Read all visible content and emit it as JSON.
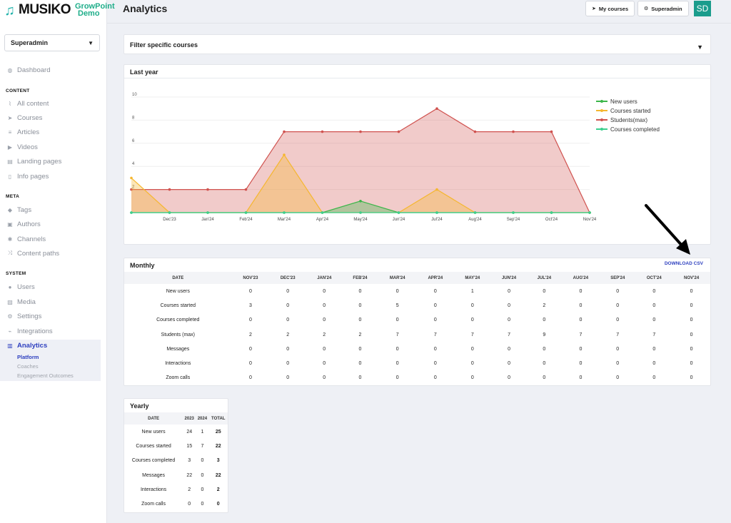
{
  "brand": {
    "name": "MUSIKO",
    "sub_line1": "GrowPoint",
    "sub_line2": "Demo"
  },
  "role_select": "Superadmin",
  "sidebar": {
    "dashboard": "Dashboard",
    "content_section": "CONTENT",
    "content": [
      "All content",
      "Courses",
      "Articles",
      "Videos",
      "Landing pages",
      "Info pages"
    ],
    "meta_section": "META",
    "meta": [
      "Tags",
      "Authors",
      "Channels",
      "Content paths"
    ],
    "system_section": "SYSTEM",
    "system": [
      "Users",
      "Media",
      "Settings",
      "Integrations",
      "Analytics"
    ],
    "analytics_sub": [
      "Platform",
      "Coaches",
      "Engagement Outcomes"
    ]
  },
  "header": {
    "title": "Analytics",
    "my_courses": "My courses",
    "superadmin": "Superadmin",
    "avatar": "SD"
  },
  "filter": {
    "label": "Filter specific courses"
  },
  "last_year": {
    "title": "Last year"
  },
  "chart_data": {
    "type": "area",
    "x": [
      "Nov'23",
      "Dec'23",
      "Jan'24",
      "Feb'24",
      "Mar'24",
      "Apr'24",
      "May'24",
      "Jun'24",
      "Jul'24",
      "Aug'24",
      "Sep'24",
      "Oct'24",
      "Nov'24"
    ],
    "x_tick_labels": [
      "Dec'23",
      "Jan'24",
      "Feb'24",
      "Mar'24",
      "Apr'24",
      "May'24",
      "Jun'24",
      "Jul'24",
      "Aug'24",
      "Sep'24",
      "Oct'24",
      "Nov'24"
    ],
    "y_ticks": [
      2,
      4,
      6,
      8,
      10
    ],
    "ylim": [
      0,
      10
    ],
    "legend_position": "right",
    "series": [
      {
        "name": "New users",
        "color": "#3cb64a",
        "values": [
          0,
          0,
          0,
          0,
          0,
          0,
          1,
          0,
          0,
          0,
          0,
          0,
          0
        ]
      },
      {
        "name": "Courses started",
        "color": "#f5b730",
        "values": [
          3,
          0,
          0,
          0,
          5,
          0,
          0,
          0,
          2,
          0,
          0,
          0,
          0
        ]
      },
      {
        "name": "Students(max)",
        "color": "#d0524f",
        "values": [
          2,
          2,
          2,
          2,
          7,
          7,
          7,
          7,
          9,
          7,
          7,
          7,
          0
        ]
      },
      {
        "name": "Courses completed",
        "color": "#3ccf8e",
        "values": [
          0,
          0,
          0,
          0,
          0,
          0,
          0,
          0,
          0,
          0,
          0,
          0,
          0
        ]
      }
    ]
  },
  "monthly": {
    "title": "Monthly",
    "download": "DOWNLOAD CSV",
    "headers": [
      "DATE",
      "NOV'23",
      "DEC'23",
      "JAN'24",
      "FEB'24",
      "MAR'24",
      "APR'24",
      "MAY'24",
      "JUN'24",
      "JUL'24",
      "AUG'24",
      "SEP'24",
      "OCT'24",
      "NOV'24"
    ],
    "rows": [
      [
        "New users",
        "0",
        "0",
        "0",
        "0",
        "0",
        "0",
        "1",
        "0",
        "0",
        "0",
        "0",
        "0",
        "0"
      ],
      [
        "Courses started",
        "3",
        "0",
        "0",
        "0",
        "5",
        "0",
        "0",
        "0",
        "2",
        "0",
        "0",
        "0",
        "0"
      ],
      [
        "Courses completed",
        "0",
        "0",
        "0",
        "0",
        "0",
        "0",
        "0",
        "0",
        "0",
        "0",
        "0",
        "0",
        "0"
      ],
      [
        "Students (max)",
        "2",
        "2",
        "2",
        "2",
        "7",
        "7",
        "7",
        "7",
        "9",
        "7",
        "7",
        "7",
        "0"
      ],
      [
        "Messages",
        "0",
        "0",
        "0",
        "0",
        "0",
        "0",
        "0",
        "0",
        "0",
        "0",
        "0",
        "0",
        "0"
      ],
      [
        "Interactions",
        "0",
        "0",
        "0",
        "0",
        "0",
        "0",
        "0",
        "0",
        "0",
        "0",
        "0",
        "0",
        "0"
      ],
      [
        "Zoom calls",
        "0",
        "0",
        "0",
        "0",
        "0",
        "0",
        "0",
        "0",
        "0",
        "0",
        "0",
        "0",
        "0"
      ]
    ]
  },
  "yearly": {
    "title": "Yearly",
    "headers": [
      "DATE",
      "2023",
      "2024",
      "TOTAL"
    ],
    "rows": [
      [
        "New users",
        "24",
        "1",
        "25"
      ],
      [
        "Courses started",
        "15",
        "7",
        "22"
      ],
      [
        "Courses completed",
        "3",
        "0",
        "3"
      ],
      [
        "Messages",
        "22",
        "0",
        "22"
      ],
      [
        "Interactions",
        "2",
        "0",
        "2"
      ],
      [
        "Zoom calls",
        "0",
        "0",
        "0"
      ]
    ]
  }
}
